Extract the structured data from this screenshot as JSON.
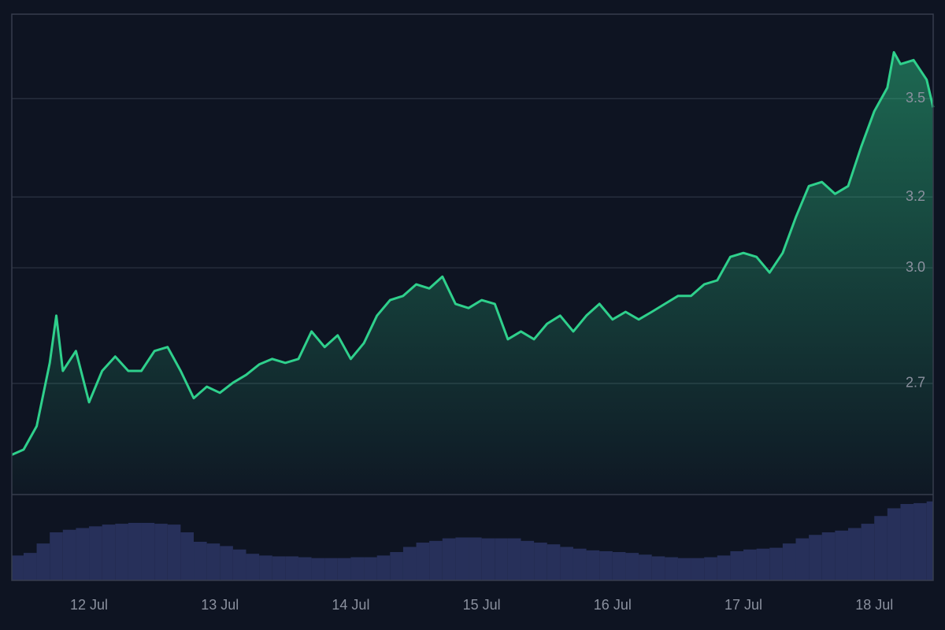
{
  "chart_data": [
    {
      "type": "area",
      "log_scale": true,
      "color": "#2fd08c",
      "x": [
        11.41,
        11.5,
        11.6,
        11.7,
        11.75,
        11.8,
        11.9,
        12.0,
        12.1,
        12.2,
        12.3,
        12.4,
        12.5,
        12.6,
        12.7,
        12.8,
        12.9,
        13.0,
        13.1,
        13.2,
        13.3,
        13.4,
        13.5,
        13.6,
        13.7,
        13.8,
        13.9,
        14.0,
        14.1,
        14.2,
        14.3,
        14.4,
        14.5,
        14.6,
        14.7,
        14.8,
        14.9,
        15.0,
        15.1,
        15.2,
        15.3,
        15.4,
        15.5,
        15.6,
        15.7,
        15.8,
        15.9,
        16.0,
        16.1,
        16.2,
        16.3,
        16.4,
        16.5,
        16.6,
        16.7,
        16.8,
        16.9,
        17.0,
        17.1,
        17.2,
        17.3,
        17.4,
        17.5,
        17.6,
        17.7,
        17.8,
        17.9,
        18.0,
        18.1,
        18.15,
        18.2,
        18.3,
        18.4,
        18.45
      ],
      "values": [
        2.53,
        2.542,
        2.597,
        2.751,
        2.872,
        2.731,
        2.781,
        2.654,
        2.731,
        2.767,
        2.731,
        2.731,
        2.781,
        2.791,
        2.731,
        2.664,
        2.692,
        2.677,
        2.702,
        2.721,
        2.747,
        2.761,
        2.751,
        2.761,
        2.831,
        2.791,
        2.821,
        2.761,
        2.801,
        2.872,
        2.913,
        2.924,
        2.955,
        2.944,
        2.976,
        2.903,
        2.892,
        2.913,
        2.903,
        2.811,
        2.831,
        2.811,
        2.851,
        2.872,
        2.831,
        2.872,
        2.903,
        2.862,
        2.882,
        2.862,
        2.882,
        2.903,
        2.924,
        2.924,
        2.955,
        2.966,
        3.03,
        3.041,
        3.03,
        2.987,
        3.041,
        3.141,
        3.232,
        3.244,
        3.209,
        3.232,
        3.35,
        3.46,
        3.535,
        3.651,
        3.612,
        3.625,
        3.561,
        3.472
      ],
      "xlim": [
        11.41,
        18.45
      ],
      "ylim": [
        2.44,
        3.78
      ],
      "yticks": [
        {
          "value": 3.5,
          "label": "3.5"
        },
        {
          "value": 3.2,
          "label": "3.2"
        },
        {
          "value": 3.0,
          "label": "3.0"
        },
        {
          "value": 2.7,
          "label": "2.7"
        }
      ],
      "grid": true
    },
    {
      "type": "bar",
      "color": "#27305a",
      "x": [
        11.41,
        11.5,
        11.6,
        11.7,
        11.8,
        11.9,
        12.0,
        12.1,
        12.2,
        12.3,
        12.4,
        12.5,
        12.6,
        12.7,
        12.8,
        12.9,
        13.0,
        13.1,
        13.2,
        13.3,
        13.4,
        13.5,
        13.6,
        13.7,
        13.8,
        13.9,
        14.0,
        14.1,
        14.2,
        14.3,
        14.4,
        14.5,
        14.6,
        14.7,
        14.8,
        14.9,
        15.0,
        15.1,
        15.2,
        15.3,
        15.4,
        15.5,
        15.6,
        15.7,
        15.8,
        15.9,
        16.0,
        16.1,
        16.2,
        16.3,
        16.4,
        16.5,
        16.6,
        16.7,
        16.8,
        16.9,
        17.0,
        17.1,
        17.2,
        17.3,
        17.4,
        17.5,
        17.6,
        17.7,
        17.8,
        17.9,
        18.0,
        18.1,
        18.2,
        18.3,
        18.4
      ],
      "values": [
        29,
        32,
        43,
        56,
        59,
        61,
        63,
        65,
        66,
        67,
        67,
        66,
        65,
        56,
        45,
        43,
        40,
        36,
        31,
        29,
        28,
        28,
        27,
        26,
        26,
        26,
        27,
        27,
        29,
        33,
        39,
        44,
        46,
        49,
        50,
        50,
        49,
        49,
        49,
        46,
        44,
        42,
        39,
        37,
        35,
        34,
        33,
        32,
        30,
        28,
        27,
        26,
        26,
        27,
        29,
        34,
        36,
        37,
        38,
        43,
        49,
        53,
        56,
        58,
        61,
        66,
        75,
        84,
        89,
        90,
        92
      ],
      "xlim": [
        11.41,
        18.45
      ],
      "ylim": [
        0,
        100
      ],
      "xticks": [
        {
          "value": 12,
          "label": "12 Jul"
        },
        {
          "value": 13,
          "label": "13 Jul"
        },
        {
          "value": 14,
          "label": "14 Jul"
        },
        {
          "value": 15,
          "label": "15 Jul"
        },
        {
          "value": 16,
          "label": "16 Jul"
        },
        {
          "value": 17,
          "label": "17 Jul"
        },
        {
          "value": 18,
          "label": "18 Jul"
        }
      ]
    }
  ]
}
